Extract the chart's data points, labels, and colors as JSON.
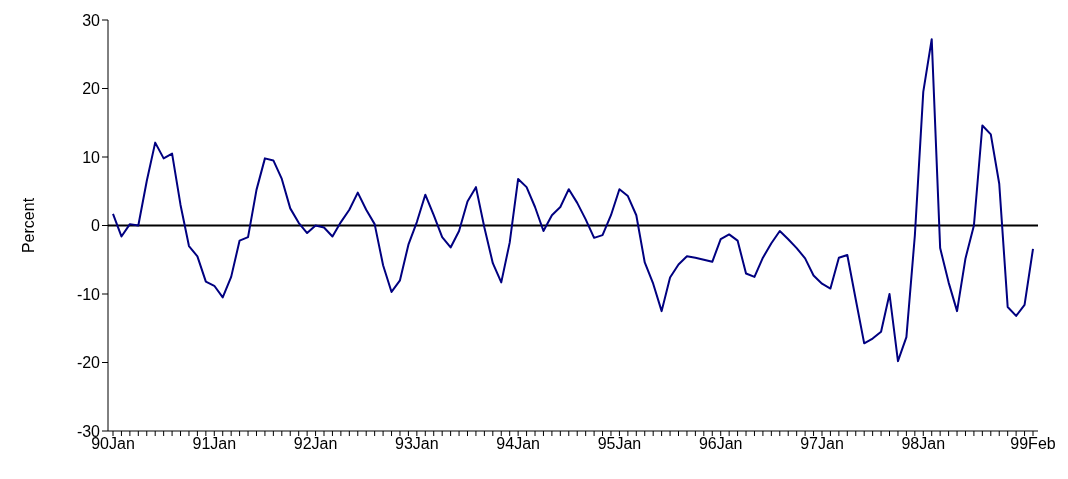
{
  "chart_data": {
    "type": "line",
    "ylabel": "Percent",
    "categories": [
      "90Jan",
      null,
      null,
      null,
      null,
      null,
      null,
      null,
      null,
      null,
      null,
      null,
      "91Jan",
      null,
      null,
      null,
      null,
      null,
      null,
      null,
      null,
      null,
      null,
      null,
      "92Jan",
      null,
      null,
      null,
      null,
      null,
      null,
      null,
      null,
      null,
      null,
      null,
      "93Jan",
      null,
      null,
      null,
      null,
      null,
      null,
      null,
      null,
      null,
      null,
      null,
      "94Jan",
      null,
      null,
      null,
      null,
      null,
      null,
      null,
      null,
      null,
      null,
      null,
      "95Jan",
      null,
      null,
      null,
      null,
      null,
      null,
      null,
      null,
      null,
      null,
      null,
      "96Jan",
      null,
      null,
      null,
      null,
      null,
      null,
      null,
      null,
      null,
      null,
      null,
      "97Jan",
      null,
      null,
      null,
      null,
      null,
      null,
      null,
      null,
      null,
      null,
      null,
      "98Jan",
      null,
      null,
      null,
      null,
      null,
      null,
      null,
      null,
      null,
      null,
      null,
      null,
      "99Feb"
    ],
    "series": [
      {
        "color": "#000080",
        "values": [
          1.7,
          -1.6,
          0.2,
          0,
          6.5,
          12.1,
          9.8,
          10.5,
          3,
          -3,
          -4.5,
          -8.2,
          -8.8,
          -10.5,
          -7.5,
          -2.2,
          -1.7,
          5.2,
          9.8,
          9.5,
          6.8,
          2.5,
          0.4,
          -1.1,
          0,
          -0.3,
          -1.6,
          0.5,
          2.3,
          4.8,
          2.3,
          0.2,
          -5.8,
          -9.7,
          -8,
          -2.8,
          0.5,
          4.5,
          1.5,
          -1.7,
          -3.2,
          -0.8,
          3.5,
          5.6,
          -0.3,
          -5.5,
          -8.3,
          -2.5,
          6.8,
          5.6,
          2.7,
          -0.8,
          1.5,
          2.7,
          5.3,
          3.3,
          0.9,
          -1.8,
          -1.4,
          1.5,
          5.3,
          4.3,
          1.5,
          -5.4,
          -8.5,
          -12.5,
          -7.6,
          -5.7,
          -4.5,
          -4.7,
          -5,
          -5.3,
          -2,
          -1.3,
          -2.2,
          -7,
          -7.5,
          -4.7,
          -2.6,
          -0.8,
          -2,
          -3.3,
          -4.8,
          -7.3,
          -8.5,
          -9.2,
          -4.7,
          -4.3,
          -10.8,
          -17.2,
          -16.5,
          -15.5,
          -10,
          -19.8,
          -16.3,
          -1.5,
          19.5,
          27.2,
          -3.3,
          -8.3,
          -12.5,
          -4.8,
          0,
          14.6,
          13.3,
          6.1,
          -11.9,
          -13.2,
          -11.6,
          -3.4
        ]
      }
    ],
    "ylim": [
      -30,
      30
    ],
    "yticks": [
      -30,
      -20,
      -10,
      0,
      10,
      20,
      30
    ],
    "ref_lines": [
      {
        "axis": "y",
        "value": 0,
        "color": "#000000"
      }
    ],
    "grid": false,
    "legend": false,
    "marker": "none",
    "line_style": "solid"
  }
}
